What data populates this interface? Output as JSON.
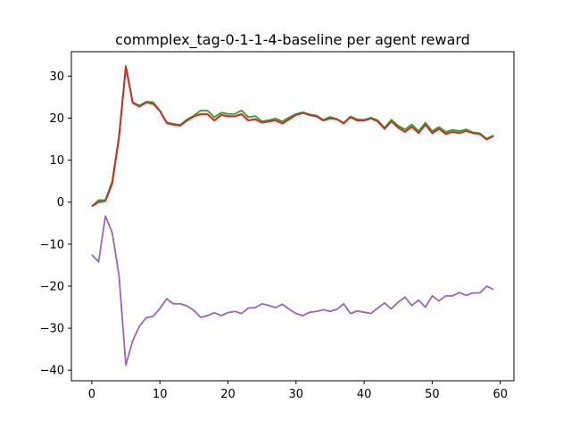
{
  "chart_data": {
    "type": "line",
    "title": "commplex_tag-0-1-1-4-baseline per agent reward",
    "xlabel": "",
    "ylabel": "",
    "xlim": [
      -3,
      62
    ],
    "ylim": [
      -42.5,
      35.8
    ],
    "xticks": [
      0,
      10,
      20,
      30,
      40,
      50,
      60
    ],
    "yticks": [
      -40,
      -30,
      -20,
      -10,
      0,
      10,
      20,
      30
    ],
    "grid": false,
    "x": [
      0,
      1,
      2,
      3,
      4,
      5,
      6,
      7,
      8,
      9,
      10,
      11,
      12,
      13,
      14,
      15,
      16,
      17,
      18,
      19,
      20,
      21,
      22,
      23,
      24,
      25,
      26,
      27,
      28,
      29,
      30,
      31,
      32,
      33,
      34,
      35,
      36,
      37,
      38,
      39,
      40,
      41,
      42,
      43,
      44,
      45,
      46,
      47,
      48,
      49,
      50,
      51,
      52,
      53,
      54,
      55,
      56,
      57,
      58,
      59
    ],
    "series": [
      {
        "color": "#1f77b4",
        "values": [
          -1.0,
          0.2,
          0.3,
          4.5,
          15.5,
          32.3,
          23.7,
          22.8,
          23.8,
          23.5,
          21.8,
          18.9,
          18.5,
          18.3,
          19.5,
          20.5,
          21.0,
          21.0,
          19.5,
          20.8,
          20.5,
          20.5,
          21.0,
          19.5,
          19.8,
          19.0,
          19.3,
          19.5,
          18.8,
          19.8,
          20.8,
          21.3,
          20.8,
          20.5,
          19.5,
          20.0,
          19.8,
          18.8,
          20.3,
          19.5,
          19.5,
          20.0,
          19.3,
          17.5,
          19.3,
          17.8,
          16.8,
          18.0,
          16.5,
          18.5,
          16.5,
          17.5,
          16.3,
          16.8,
          16.5,
          17.0,
          16.5,
          16.3,
          15.0,
          15.8
        ]
      },
      {
        "color": "#ff7f0e",
        "values": [
          -1.0,
          0.2,
          0.3,
          4.5,
          15.5,
          32.3,
          23.7,
          22.8,
          23.8,
          23.5,
          21.8,
          18.9,
          18.5,
          18.3,
          19.5,
          20.5,
          21.0,
          21.0,
          19.5,
          20.8,
          20.5,
          20.5,
          21.0,
          19.5,
          19.8,
          19.0,
          19.3,
          19.5,
          18.8,
          19.8,
          20.8,
          21.3,
          20.8,
          20.5,
          19.5,
          20.0,
          19.8,
          18.8,
          20.3,
          19.5,
          19.5,
          20.0,
          19.3,
          17.5,
          19.3,
          17.8,
          16.8,
          18.0,
          16.5,
          18.5,
          16.5,
          17.5,
          16.3,
          16.8,
          16.5,
          17.0,
          16.5,
          16.3,
          15.0,
          15.8
        ]
      },
      {
        "color": "#2ca02c",
        "values": [
          -1.0,
          0.5,
          0.5,
          5.0,
          15.8,
          32.5,
          23.8,
          23.0,
          23.9,
          23.8,
          21.8,
          19.0,
          18.6,
          18.4,
          19.7,
          20.6,
          21.8,
          21.8,
          20.2,
          21.3,
          21.0,
          21.0,
          21.8,
          20.2,
          20.5,
          19.2,
          19.5,
          19.9,
          19.2,
          20.2,
          21.0,
          21.4,
          20.9,
          20.6,
          19.6,
          20.3,
          19.8,
          18.9,
          20.4,
          19.7,
          19.6,
          20.1,
          19.5,
          17.7,
          19.6,
          18.2,
          17.3,
          18.5,
          16.9,
          18.9,
          16.9,
          17.9,
          16.7,
          17.2,
          16.9,
          17.3,
          16.6,
          16.4,
          15.1,
          15.9
        ]
      },
      {
        "color": "#d62728",
        "values": [
          -1.0,
          0.0,
          0.3,
          4.4,
          15.4,
          32.2,
          23.6,
          22.7,
          23.7,
          23.4,
          21.7,
          18.8,
          18.4,
          18.2,
          19.4,
          20.4,
          20.9,
          20.9,
          19.4,
          20.7,
          20.4,
          20.4,
          20.9,
          19.4,
          19.7,
          18.9,
          19.2,
          19.4,
          18.7,
          19.7,
          20.7,
          21.2,
          20.7,
          20.4,
          19.4,
          19.9,
          19.7,
          18.7,
          20.2,
          19.4,
          19.4,
          19.9,
          19.2,
          17.4,
          19.2,
          17.7,
          16.7,
          17.9,
          16.4,
          18.4,
          16.4,
          17.4,
          16.2,
          16.7,
          16.4,
          16.9,
          16.4,
          16.2,
          14.9,
          15.7
        ]
      },
      {
        "color": "#9467bd",
        "values": [
          -12.5,
          -14.2,
          -3.3,
          -7.3,
          -17.5,
          -38.8,
          -33.0,
          -29.5,
          -27.5,
          -27.2,
          -25.3,
          -23.0,
          -24.2,
          -24.2,
          -24.7,
          -25.8,
          -27.4,
          -27.0,
          -26.3,
          -27.0,
          -26.3,
          -26.0,
          -26.5,
          -25.2,
          -25.1,
          -24.2,
          -24.6,
          -25.1,
          -24.3,
          -25.5,
          -26.5,
          -27.0,
          -26.2,
          -26.0,
          -25.6,
          -26.0,
          -25.5,
          -24.2,
          -26.5,
          -25.9,
          -26.2,
          -26.5,
          -25.2,
          -24.0,
          -25.4,
          -23.8,
          -22.6,
          -24.6,
          -23.3,
          -25.0,
          -22.3,
          -23.5,
          -22.3,
          -22.3,
          -21.5,
          -22.2,
          -21.6,
          -21.6,
          -20.0,
          -20.8
        ]
      }
    ]
  }
}
